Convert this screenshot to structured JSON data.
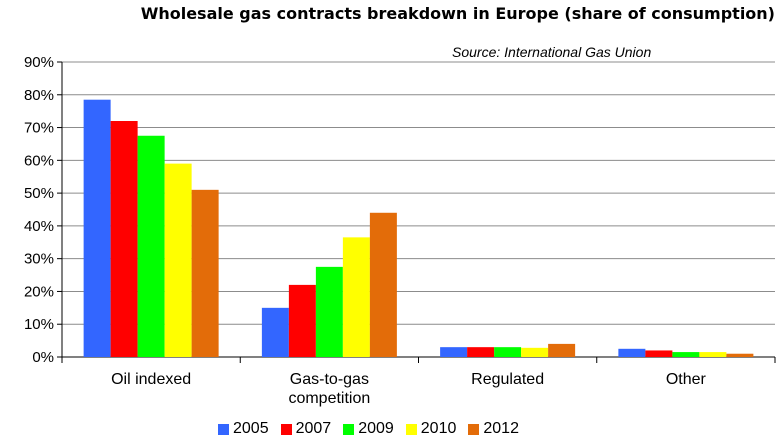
{
  "chart_data": {
    "type": "bar",
    "title": "Wholesale gas contracts breakdown in Europe (share of consumption)",
    "source": "Source: International  Gas Union",
    "xlabel": "",
    "ylabel": "",
    "ylim": [
      0,
      90
    ],
    "yticks": [
      "0%",
      "10%",
      "20%",
      "30%",
      "40%",
      "50%",
      "60%",
      "70%",
      "80%",
      "90%"
    ],
    "categories": [
      [
        "Oil indexed"
      ],
      [
        "Gas-to-gas",
        "competition"
      ],
      [
        "Regulated"
      ],
      [
        "Other"
      ]
    ],
    "series": [
      {
        "name": "2005",
        "color": "#3366ff",
        "values": [
          78.5,
          15,
          3,
          2.5
        ]
      },
      {
        "name": "2007",
        "color": "#ff0000",
        "values": [
          72,
          22,
          3,
          2
        ]
      },
      {
        "name": "2009",
        "color": "#00ff00",
        "values": [
          67.5,
          27.5,
          3,
          1.5
        ]
      },
      {
        "name": "2010",
        "color": "#ffff00",
        "values": [
          59,
          36.5,
          2.8,
          1.5
        ]
      },
      {
        "name": "2012",
        "color": "#e36c09",
        "values": [
          51,
          44,
          4,
          1
        ]
      }
    ],
    "grid": true,
    "legend_position": "bottom"
  }
}
